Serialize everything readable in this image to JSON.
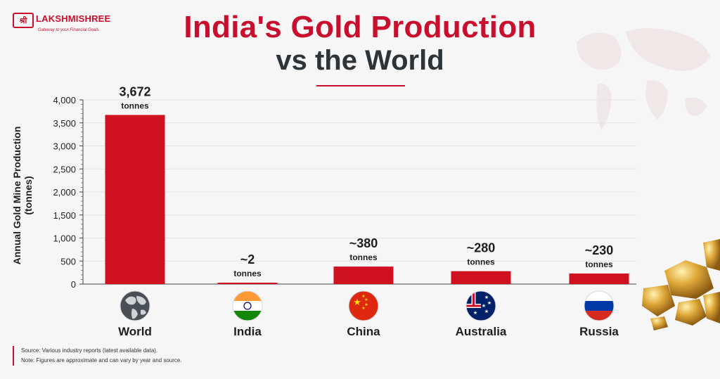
{
  "brand": {
    "logo_mark": "श्री",
    "name": "LAKSHMISHREE",
    "tagline": "Gateway to your Financial Goals"
  },
  "header": {
    "title_line1": "India's Gold Production",
    "title_line2": "vs the World"
  },
  "chart_data": {
    "type": "bar",
    "categories": [
      "World",
      "India",
      "China",
      "Australia",
      "Russia"
    ],
    "values": [
      3672,
      2,
      380,
      280,
      230
    ],
    "value_labels": [
      "3,672",
      "~2",
      "~380",
      "~280",
      "~230"
    ],
    "value_unit": "tonnes",
    "ylabel": "Annual Gold Mine Production (tonnes)",
    "ylim": [
      0,
      4000
    ],
    "yticks": [
      0,
      500,
      1000,
      1500,
      2000,
      2500,
      3000,
      3500,
      4000
    ],
    "ytick_labels": [
      "0",
      "500",
      "1,000",
      "1,500",
      "2,000",
      "2,500",
      "3,000",
      "3,500",
      "4,000"
    ],
    "grid": true,
    "bar_color": "#d0111f",
    "flag_icons": [
      "globe-icon",
      "india-flag-icon",
      "china-flag-icon",
      "australia-flag-icon",
      "russia-flag-icon"
    ]
  },
  "footer": {
    "source": "Source: Various industry reports (latest available data).",
    "note": "Note: Figures are approximate and can vary by year and source."
  },
  "colors": {
    "accent": "#c8102e",
    "title_dark": "#2e3338",
    "background": "#f6f6f7"
  }
}
